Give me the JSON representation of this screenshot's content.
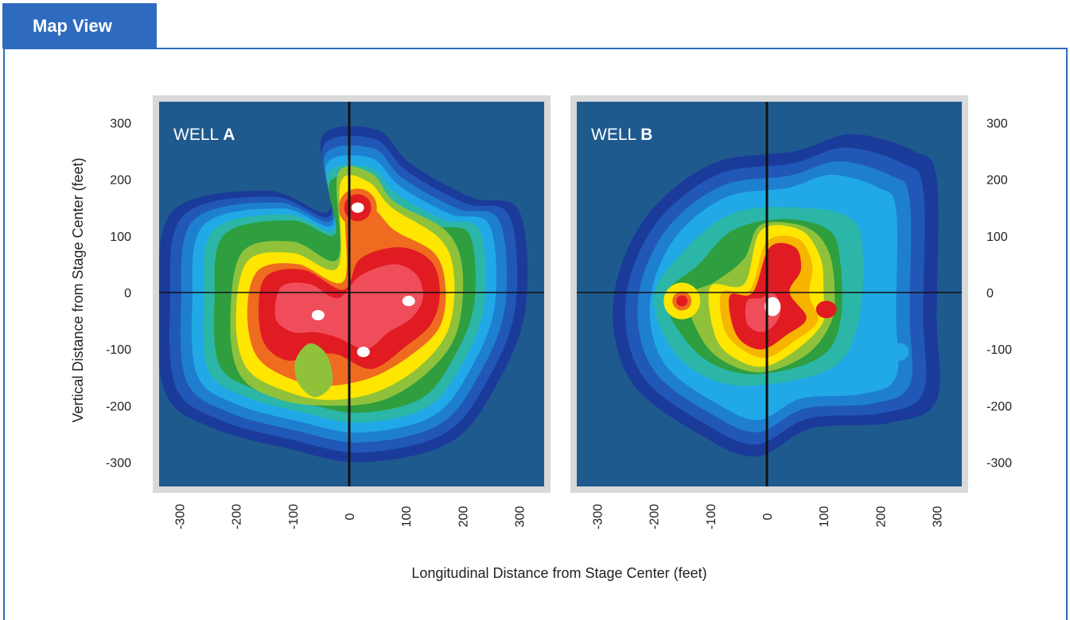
{
  "tab": {
    "label": "Map View"
  },
  "colors": {
    "tab_bg": "#2e6bbf",
    "frame_border": "#2e6bbf",
    "panel_border": "#d9d9d9",
    "map_background": "#1f5a8e",
    "contour_levels": [
      "#1b3b9a",
      "#2158b8",
      "#1e7fd0",
      "#21a8e6",
      "#2bb6a8",
      "#2e9e3f",
      "#8fc23a",
      "#ffe600",
      "#f7b500",
      "#ef6b1f",
      "#e11b22",
      "#f04d5a",
      "#ffffff"
    ]
  },
  "chart_data": [
    {
      "type": "heatmap",
      "title": "",
      "panel_label": "WELL A",
      "panel_label_prefix": "WELL",
      "panel_label_suffix": "A",
      "xlabel": "Longitudinal Distance from Stage Center (feet)",
      "ylabel": "Vertical Distance from Stage Center (feet)",
      "xlim": [
        -340,
        340
      ],
      "ylim": [
        -340,
        340
      ],
      "x_ticks": [
        "-300",
        "-200",
        "-100",
        "0",
        "100",
        "200",
        "300"
      ],
      "y_ticks": [
        "300",
        "200",
        "100",
        "0",
        "-100",
        "-200",
        "-300"
      ],
      "hotspots": [
        {
          "x": 15,
          "y": 150,
          "level": "peak"
        },
        {
          "x": -55,
          "y": -40,
          "level": "peak"
        },
        {
          "x": 25,
          "y": -105,
          "level": "peak"
        },
        {
          "x": 105,
          "y": -15,
          "level": "peak"
        }
      ]
    },
    {
      "type": "heatmap",
      "title": "",
      "panel_label": "WELL B",
      "panel_label_prefix": "WELL",
      "panel_label_suffix": "B",
      "xlabel": "Longitudinal Distance from Stage Center (feet)",
      "ylabel": "",
      "xlim": [
        -340,
        340
      ],
      "ylim": [
        -340,
        340
      ],
      "x_ticks": [
        "-300",
        "-200",
        "-100",
        "0",
        "100",
        "200",
        "300"
      ],
      "y_ticks": [
        "300",
        "200",
        "100",
        "0",
        "-100",
        "-200",
        "-300"
      ],
      "hotspots": [
        {
          "x": 10,
          "y": -25,
          "level": "peak"
        },
        {
          "x": -150,
          "y": -15,
          "level": "high"
        },
        {
          "x": 105,
          "y": -30,
          "level": "high"
        },
        {
          "x": 235,
          "y": -105,
          "level": "low"
        }
      ]
    }
  ]
}
